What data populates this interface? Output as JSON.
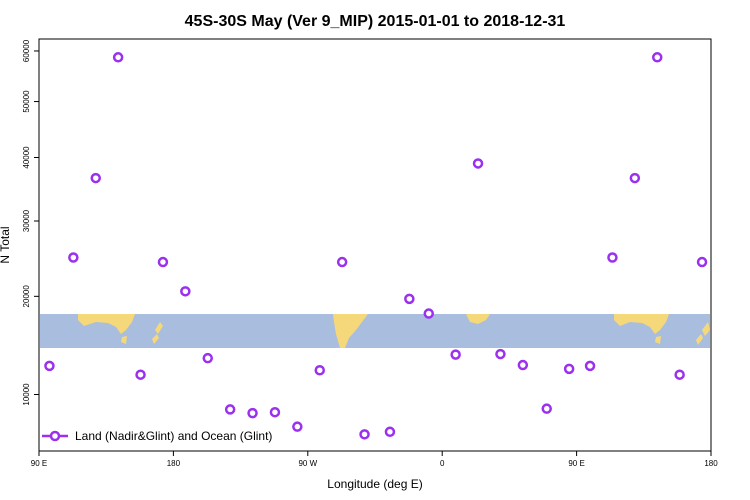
{
  "chart_data": {
    "type": "scatter",
    "title": "45S-30S May (Ver 9_MIP)   2015-01-01 to 2018-12-31",
    "xlabel": "Longitude (deg E)",
    "ylabel": "N Total",
    "x_ticks": [
      {
        "value": 90,
        "label": "90 E"
      },
      {
        "value": 180,
        "label": "180"
      },
      {
        "value": 270,
        "label": "90 W"
      },
      {
        "value": 360,
        "label": "0"
      },
      {
        "value": 450,
        "label": "90 E"
      },
      {
        "value": 540,
        "label": "180"
      }
    ],
    "y_ticks": [
      10000,
      20000,
      30000,
      40000,
      50000,
      60000
    ],
    "xlim": [
      90,
      540
    ],
    "ylim": [
      5800,
      62500
    ],
    "y_scale": "sqrt",
    "grid": false,
    "legend_position": "bottom-left",
    "colors": {
      "marker": "#9b30ef",
      "ocean_band": "#a9bddf",
      "land_band": "#f5d87a"
    },
    "series": [
      {
        "name": "Land (Nadir&Glint) and Ocean (Glint)",
        "points": [
          {
            "x": 97,
            "y": 12560
          },
          {
            "x": 113,
            "y": 24900
          },
          {
            "x": 128,
            "y": 36600
          },
          {
            "x": 143,
            "y": 58700
          },
          {
            "x": 158,
            "y": 11740
          },
          {
            "x": 173,
            "y": 24300
          },
          {
            "x": 188,
            "y": 20600
          },
          {
            "x": 203,
            "y": 13300
          },
          {
            "x": 218,
            "y": 8780
          },
          {
            "x": 233,
            "y": 8490
          },
          {
            "x": 248,
            "y": 8560
          },
          {
            "x": 263,
            "y": 7470
          },
          {
            "x": 278,
            "y": 12150
          },
          {
            "x": 293,
            "y": 24300
          },
          {
            "x": 308,
            "y": 6920
          },
          {
            "x": 325,
            "y": 7100
          },
          {
            "x": 338,
            "y": 19700
          },
          {
            "x": 351,
            "y": 18000
          },
          {
            "x": 369,
            "y": 13650
          },
          {
            "x": 384,
            "y": 39000
          },
          {
            "x": 399,
            "y": 13700
          },
          {
            "x": 414,
            "y": 12640
          },
          {
            "x": 430,
            "y": 8840
          },
          {
            "x": 445,
            "y": 12280
          },
          {
            "x": 459,
            "y": 12560
          },
          {
            "x": 474,
            "y": 24900
          },
          {
            "x": 489,
            "y": 36600
          },
          {
            "x": 504,
            "y": 58700
          },
          {
            "x": 519,
            "y": 11740
          },
          {
            "x": 534,
            "y": 24300
          }
        ]
      }
    ]
  }
}
